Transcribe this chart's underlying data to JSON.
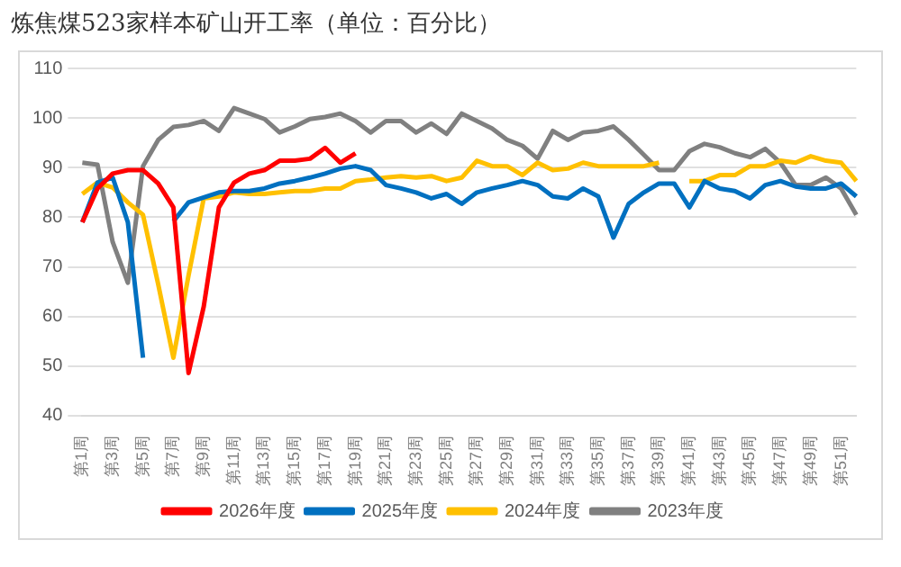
{
  "chart_data": {
    "type": "line",
    "title": "炼焦煤523家样本矿山开工率（单位：百分比）",
    "categories": [
      "第1周",
      null,
      "第3周",
      null,
      "第5周",
      null,
      "第7周",
      null,
      "第9周",
      null,
      "第11周",
      null,
      "第13周",
      null,
      "第15周",
      null,
      "第17周",
      null,
      "第19周",
      null,
      "第21周",
      null,
      "第23周",
      null,
      "第25周",
      null,
      "第27周",
      null,
      "第29周",
      null,
      "第31周",
      null,
      "第33周",
      null,
      "第35周",
      null,
      "第37周",
      null,
      "第39周",
      null,
      "第41周",
      null,
      "第43周",
      null,
      "第45周",
      null,
      "第47周",
      null,
      "第49周",
      null,
      "第51周",
      null
    ],
    "series": [
      {
        "name": "2026年度",
        "color": "#ff0000",
        "values": [
          79,
          85.8,
          88.8,
          89.5,
          89.5,
          86.8,
          82,
          48.6,
          62,
          82,
          87,
          88.8,
          89.5,
          91.4,
          91.4,
          91.8,
          94,
          91,
          92.9,
          null,
          null,
          null,
          null,
          null,
          null,
          null,
          null,
          null,
          null,
          null,
          null,
          null,
          null,
          null,
          null,
          null,
          null,
          null,
          null,
          null,
          null,
          null,
          null,
          null,
          null,
          null,
          null,
          null,
          null,
          null,
          null,
          null
        ]
      },
      {
        "name": "2025年度",
        "color": "#0070c0",
        "values": [
          79,
          87,
          88,
          79,
          51.7,
          null,
          79.2,
          83,
          84,
          85,
          85.3,
          85.3,
          85.8,
          86.8,
          87.3,
          88,
          88.8,
          89.8,
          90.3,
          89.5,
          86.5,
          85.8,
          85,
          83.8,
          84.7,
          82.7,
          85,
          85.8,
          86.5,
          87.3,
          86.5,
          84.2,
          83.8,
          85.8,
          84.2,
          75.9,
          82.7,
          85,
          86.8,
          86.8,
          82,
          87.3,
          85.8,
          85.3,
          83.8,
          86.5,
          87.3,
          86.2,
          85.8,
          85.8,
          86.8,
          84.2
        ]
      },
      {
        "name": "2024年度",
        "color": "#ffc000",
        "values": [
          84.7,
          87,
          86,
          83,
          80.5,
          66.5,
          51.7,
          68.3,
          83.8,
          84.2,
          85,
          84.7,
          84.7,
          85,
          85.3,
          85.3,
          85.8,
          85.8,
          87.3,
          87.6,
          88,
          88.3,
          88,
          88.3,
          87.3,
          88,
          91.4,
          90.3,
          90.3,
          88.5,
          91,
          89.5,
          89.8,
          91,
          90.3,
          90.3,
          90.3,
          90.3,
          91,
          null,
          87.3,
          87.3,
          88.5,
          88.5,
          90.3,
          90.3,
          91.4,
          91,
          92.3,
          91.4,
          91,
          87.3
        ]
      },
      {
        "name": "2023年度",
        "color": "#808080",
        "values": [
          91,
          90.6,
          75,
          66.8,
          90.3,
          95.6,
          98.2,
          98.6,
          99.4,
          97.4,
          102,
          100.9,
          99.8,
          97.1,
          98.3,
          99.8,
          100.2,
          100.9,
          99.4,
          97.1,
          99.4,
          99.4,
          97.1,
          98.9,
          96.8,
          100.9,
          99.4,
          97.9,
          95.6,
          94.4,
          91.8,
          97.4,
          95.6,
          97.1,
          97.4,
          98.3,
          95.6,
          92.6,
          89.5,
          89.5,
          93.3,
          94.8,
          94.1,
          92.9,
          92.1,
          93.8,
          91,
          86.5,
          86.5,
          88,
          85.8,
          80.5
        ]
      }
    ],
    "ylim": [
      40,
      110
    ],
    "yticks": [
      40,
      50,
      60,
      70,
      80,
      90,
      100,
      110
    ],
    "grid": "y",
    "legend": "bottom",
    "marker": "none"
  }
}
